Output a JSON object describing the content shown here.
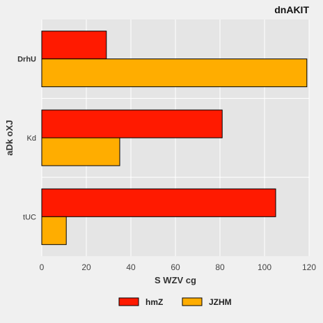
{
  "chart_data": {
    "type": "bar",
    "orientation": "horizontal",
    "title": "dnAKIT",
    "xlabel": "S WZV cg",
    "ylabel": "aDk oXJ",
    "categories": [
      "DrhU",
      "Kd",
      "tUC"
    ],
    "series": [
      {
        "name": "hmZ",
        "color": "#ff1a00",
        "values": [
          29,
          81,
          105
        ]
      },
      {
        "name": "JZHM",
        "color": "#ffad00",
        "values": [
          119,
          35,
          11
        ]
      }
    ],
    "xlim": [
      0,
      120
    ],
    "xticks": [
      0,
      20,
      40,
      60,
      80,
      100,
      120
    ],
    "grid": true,
    "legend_position": "bottom"
  }
}
